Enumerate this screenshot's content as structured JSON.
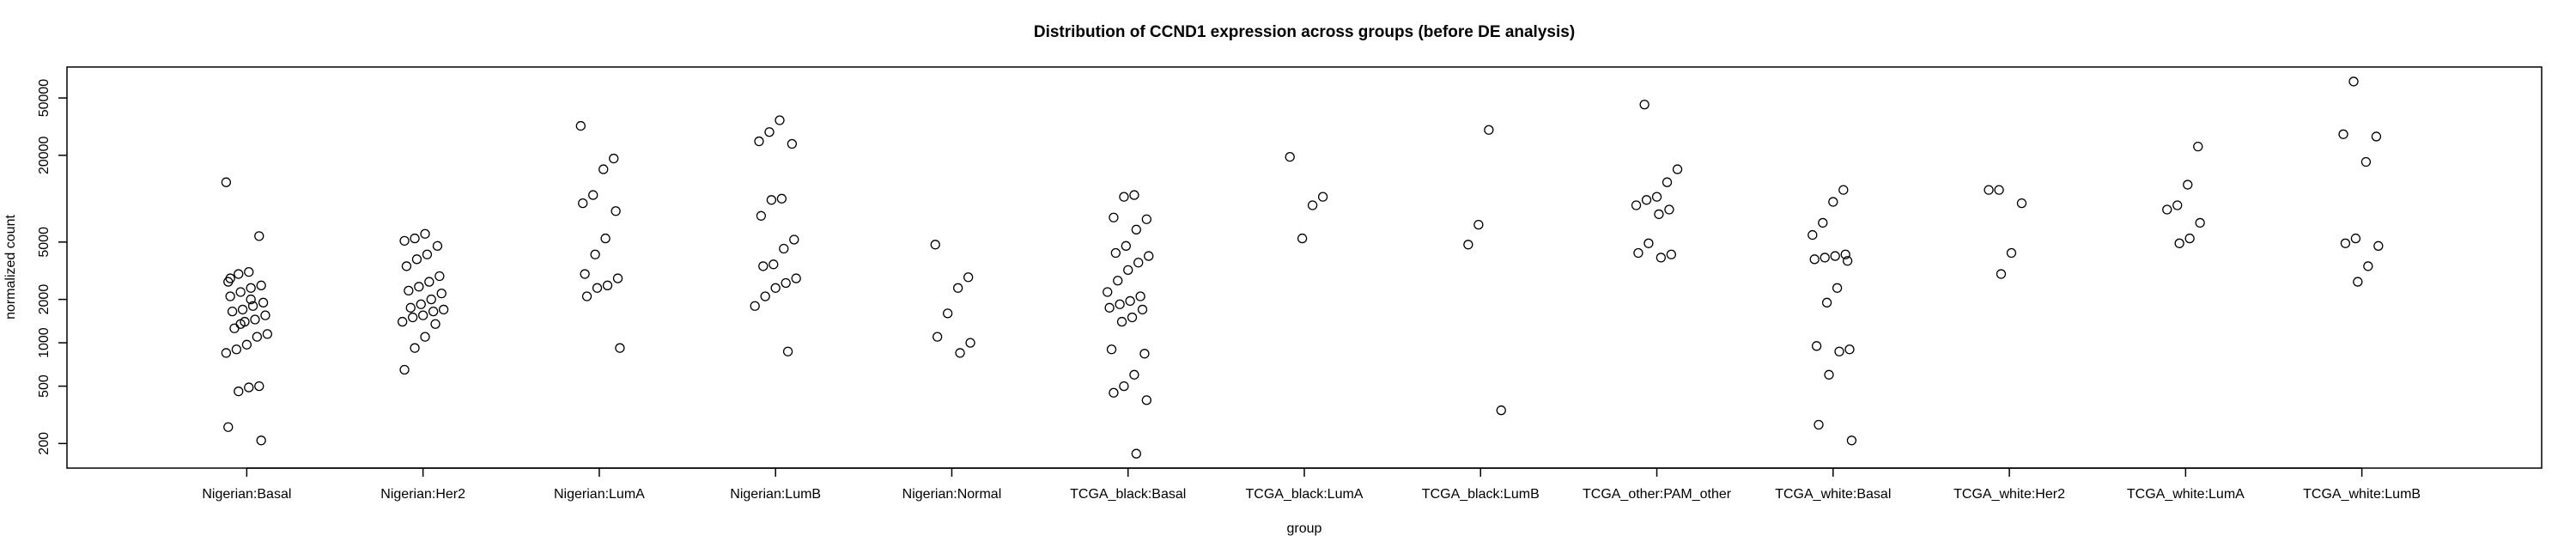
{
  "chart_data": {
    "type": "strip",
    "title": "Distribution of CCND1 expression across groups (before DE analysis)",
    "x_label": "group",
    "y_label": "normalized count",
    "y_scale": "log",
    "ylim": [
      135,
      82000
    ],
    "yticks": [
      200,
      500,
      1000,
      2000,
      5000,
      20000,
      50000
    ],
    "color": "#000000",
    "categories": [
      "Nigerian:Basal",
      "Nigerian:Her2",
      "Nigerian:LumA",
      "Nigerian:LumB",
      "Nigerian:Normal",
      "TCGA_black:Basal",
      "TCGA_black:LumA",
      "TCGA_black:LumB",
      "TCGA_other:PAM_other",
      "TCGA_white:Basal",
      "TCGA_white:Her2",
      "TCGA_white:LumA",
      "TCGA_white:LumB"
    ],
    "values": [
      [
        13000,
        5500,
        3100,
        3000,
        2650,
        2500,
        2400,
        2250,
        2100,
        1900,
        1800,
        1700,
        1650,
        1550,
        1450,
        1400,
        1260,
        1150,
        1100,
        970,
        900,
        850,
        500,
        490,
        460,
        260,
        210,
        2000,
        1350,
        2800
      ],
      [
        5700,
        5300,
        5100,
        4700,
        4100,
        3800,
        3400,
        2900,
        2650,
        2450,
        2300,
        2200,
        2000,
        1850,
        1750,
        1700,
        1650,
        1550,
        1500,
        1400,
        1350,
        1100,
        920,
        650
      ],
      [
        32000,
        19000,
        16000,
        10600,
        9300,
        8200,
        5300,
        4100,
        3000,
        2800,
        2500,
        2400,
        2100,
        920
      ],
      [
        35000,
        29000,
        25000,
        24000,
        10000,
        9800,
        7600,
        5200,
        4500,
        3500,
        3400,
        2800,
        2600,
        2400,
        2100,
        1800,
        870
      ],
      [
        4800,
        2850,
        2400,
        1600,
        1100,
        1000,
        850
      ],
      [
        10600,
        10300,
        7400,
        7200,
        6100,
        4700,
        4200,
        4000,
        3600,
        3200,
        2700,
        2250,
        2100,
        1950,
        1850,
        1750,
        1700,
        1500,
        1400,
        900,
        840,
        600,
        500,
        450,
        400,
        170
      ],
      [
        19500,
        10300,
        9000,
        5300
      ],
      [
        30000,
        6600,
        4800,
        340
      ],
      [
        45000,
        16000,
        13000,
        10300,
        9800,
        9000,
        8400,
        7800,
        4900,
        4200,
        4100,
        3900
      ],
      [
        11500,
        9500,
        6800,
        5600,
        4100,
        4000,
        3900,
        3800,
        3700,
        2400,
        1900,
        950,
        900,
        870,
        600,
        270,
        210
      ],
      [
        11500,
        11500,
        9300,
        4200,
        3000
      ],
      [
        23000,
        12500,
        9000,
        8400,
        6800,
        5300,
        4900
      ],
      [
        65000,
        28000,
        27000,
        18000,
        5300,
        4900,
        4700,
        3400,
        2650
      ]
    ]
  }
}
